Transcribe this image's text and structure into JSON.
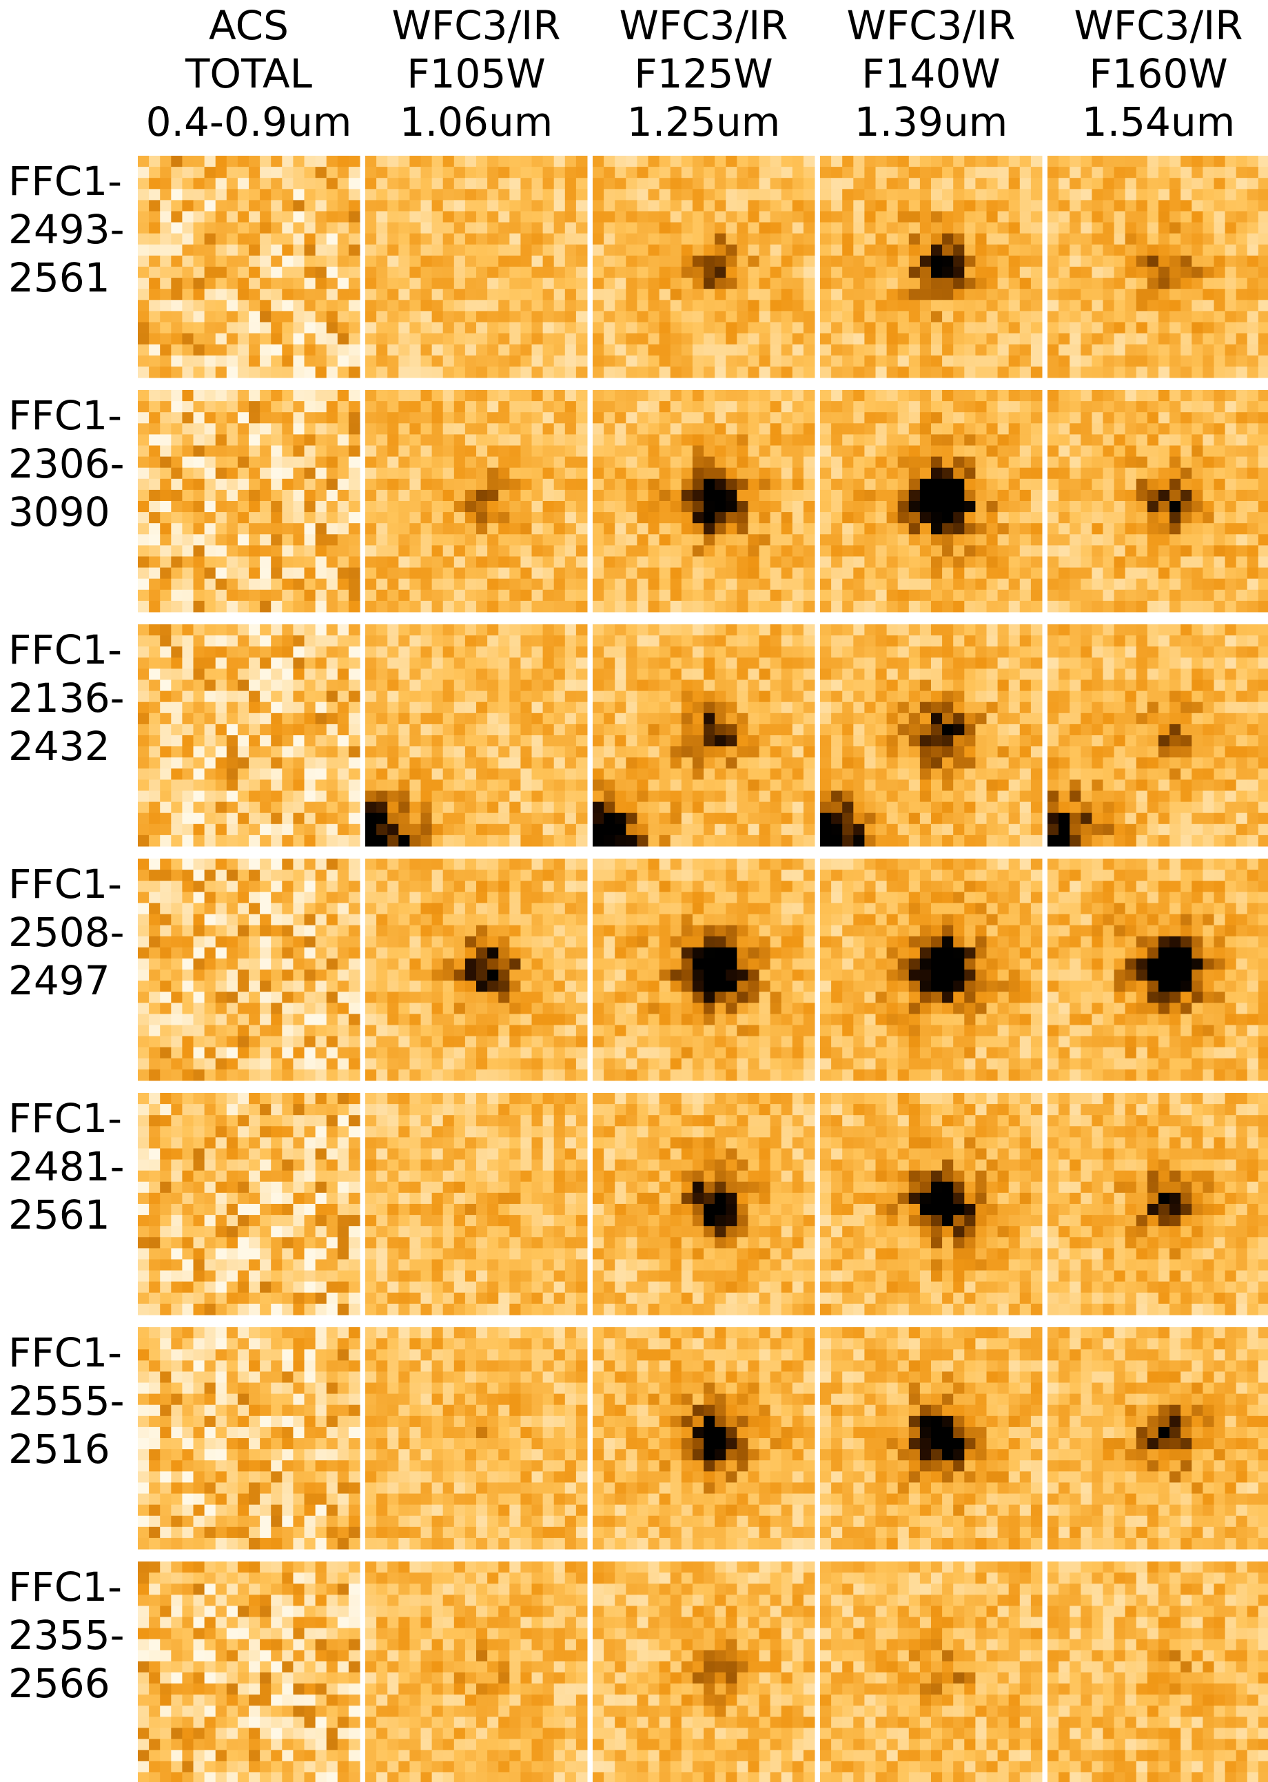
{
  "columns": [
    {
      "lines": [
        "ACS",
        "TOTAL",
        "0.4-0.9um"
      ]
    },
    {
      "lines": [
        "WFC3/IR",
        "F105W",
        "1.06um"
      ]
    },
    {
      "lines": [
        "WFC3/IR",
        "F125W",
        "1.25um"
      ]
    },
    {
      "lines": [
        "WFC3/IR",
        "F140W",
        "1.39um"
      ]
    },
    {
      "lines": [
        "WFC3/IR",
        "F160W",
        "1.54um"
      ]
    }
  ],
  "rows": [
    {
      "lines": [
        "FFC1-",
        "2493-",
        "2561"
      ]
    },
    {
      "lines": [
        "FFC1-",
        "2306-",
        "3090"
      ]
    },
    {
      "lines": [
        "FFC1-",
        "2136-",
        "2432"
      ]
    },
    {
      "lines": [
        "FFC1-",
        "2508-",
        "2497"
      ]
    },
    {
      "lines": [
        "FFC1-",
        "2481-",
        "2561"
      ]
    },
    {
      "lines": [
        "FFC1-",
        "2555-",
        "2516"
      ]
    },
    {
      "lines": [
        "FFC1-",
        "2355-",
        "2566"
      ]
    }
  ]
}
